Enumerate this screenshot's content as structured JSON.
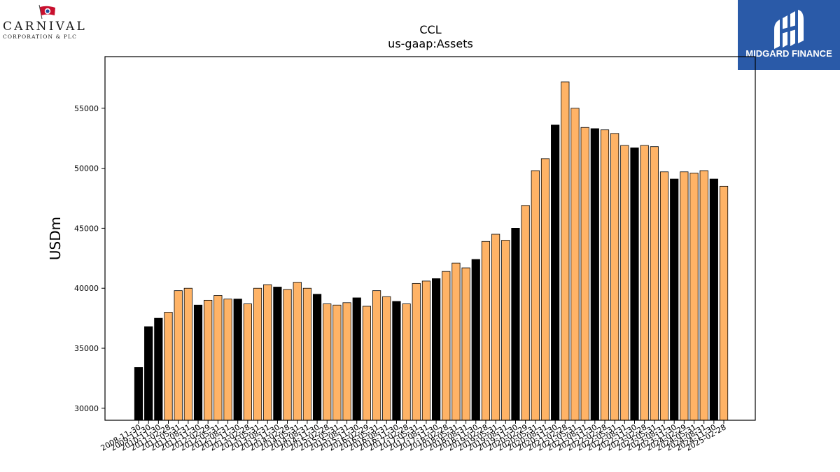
{
  "logos": {
    "left": {
      "name": "CARNIVAL",
      "subtitle": "CORPORATION & PLC"
    },
    "right": {
      "name": "MIDGARD FINANCE"
    }
  },
  "chart_data": {
    "type": "bar",
    "title": "CCL",
    "subtitle": "us-gaap:Assets",
    "ylabel": "USDm",
    "xlabel": "",
    "ylim": [
      29000,
      59300
    ],
    "yticks": [
      30000,
      35000,
      40000,
      45000,
      50000,
      55000
    ],
    "grid": false,
    "legend": "none",
    "colors": {
      "annual": "#000000",
      "quarterly": "#ffb366",
      "edge": "#000000"
    },
    "categories": [
      "2008-11-30",
      "2009-11-30",
      "2010-11-30",
      "2011-02-28",
      "2011-05-31",
      "2011-08-31",
      "2011-11-30",
      "2012-02-29",
      "2012-05-31",
      "2012-08-31",
      "2012-11-30",
      "2013-02-28",
      "2013-05-31",
      "2013-08-31",
      "2013-11-30",
      "2014-02-28",
      "2014-05-31",
      "2014-08-31",
      "2014-11-30",
      "2015-02-28",
      "2015-05-31",
      "2015-08-31",
      "2015-11-30",
      "2016-02-29",
      "2016-05-31",
      "2016-08-31",
      "2016-11-30",
      "2017-02-28",
      "2017-05-31",
      "2017-08-31",
      "2017-11-30",
      "2018-02-28",
      "2018-05-31",
      "2018-08-31",
      "2018-11-30",
      "2019-02-28",
      "2019-05-31",
      "2019-08-31",
      "2019-11-30",
      "2020-02-29",
      "2020-05-31",
      "2020-08-31",
      "2020-11-30",
      "2021-02-28",
      "2021-05-31",
      "2021-08-31",
      "2021-11-30",
      "2022-02-28",
      "2022-05-31",
      "2022-08-31",
      "2022-11-30",
      "2023-02-28",
      "2023-05-31",
      "2023-08-31",
      "2023-11-30",
      "2024-02-29",
      "2024-05-31",
      "2024-08-31",
      "2024-11-30",
      "2025-02-28"
    ],
    "values": [
      33400,
      36800,
      37500,
      38000,
      39800,
      40000,
      38600,
      39000,
      39400,
      39100,
      39100,
      38700,
      40000,
      40300,
      40100,
      39900,
      40500,
      40000,
      39500,
      38700,
      38600,
      38800,
      39200,
      38500,
      39800,
      39300,
      38900,
      38700,
      40400,
      40600,
      40800,
      41400,
      42100,
      41700,
      42400,
      43900,
      44500,
      44000,
      45000,
      46900,
      49800,
      50800,
      53600,
      57200,
      55000,
      53400,
      53300,
      53200,
      52900,
      51900,
      51700,
      51900,
      51800,
      49700,
      49100,
      49700,
      49600,
      49800,
      49100,
      48500
    ],
    "annual": [
      true,
      true,
      true,
      false,
      false,
      false,
      true,
      false,
      false,
      false,
      true,
      false,
      false,
      false,
      true,
      false,
      false,
      false,
      true,
      false,
      false,
      false,
      true,
      false,
      false,
      false,
      true,
      false,
      false,
      false,
      true,
      false,
      false,
      false,
      true,
      false,
      false,
      false,
      true,
      false,
      false,
      false,
      true,
      false,
      false,
      false,
      true,
      false,
      false,
      false,
      true,
      false,
      false,
      false,
      true,
      false,
      false,
      false,
      true,
      false
    ]
  }
}
